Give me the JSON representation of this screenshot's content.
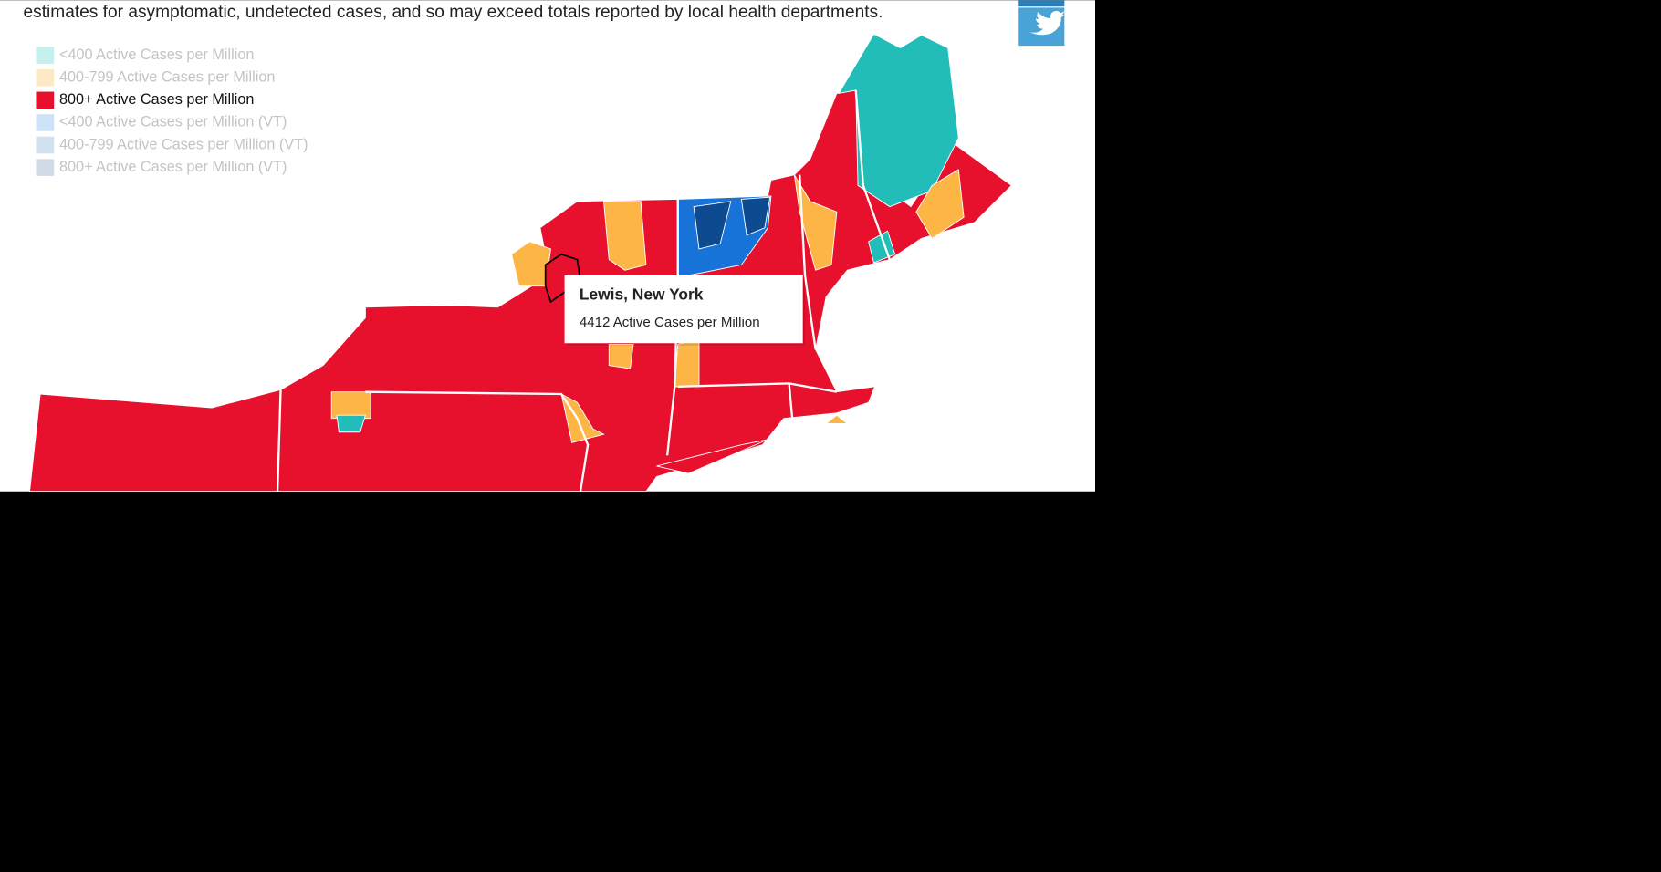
{
  "header": {
    "note": "estimates for asymptomatic, undetected cases, and so may exceed totals reported by local health departments."
  },
  "legend": [
    {
      "label": "<400 Active Cases per Million",
      "color": "#c6f0ee",
      "active": false
    },
    {
      "label": "400-799 Active Cases per Million",
      "color": "#fde9c6",
      "active": false
    },
    {
      "label": "800+ Active Cases per Million",
      "color": "#e8112d",
      "active": true
    },
    {
      "label": "<400 Active Cases per Million (VT)",
      "color": "#cfe3f8",
      "active": false
    },
    {
      "label": "400-799 Active Cases per Million (VT)",
      "color": "#d3e0f0",
      "active": false
    },
    {
      "label": "800+ Active Cases per Million (VT)",
      "color": "#d2dae6",
      "active": false
    }
  ],
  "tooltip": {
    "title": "Lewis, New York",
    "value": "4412 Active Cases per Million"
  }
}
